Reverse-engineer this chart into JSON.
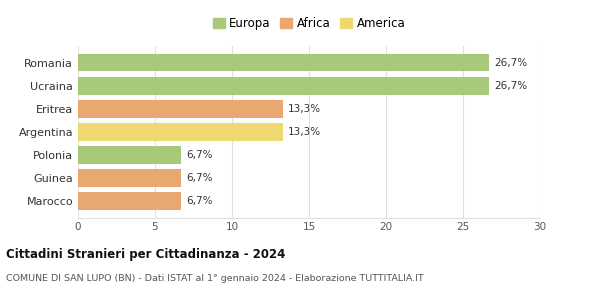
{
  "categories": [
    "Romania",
    "Ucraina",
    "Eritrea",
    "Argentina",
    "Polonia",
    "Guinea",
    "Marocco"
  ],
  "values": [
    26.7,
    26.7,
    13.3,
    13.3,
    6.7,
    6.7,
    6.7
  ],
  "labels": [
    "26,7%",
    "26,7%",
    "13,3%",
    "13,3%",
    "6,7%",
    "6,7%",
    "6,7%"
  ],
  "colors": [
    "#a8c87a",
    "#a8c87a",
    "#e8a870",
    "#f0d870",
    "#a8c87a",
    "#e8a870",
    "#e8a870"
  ],
  "legend": [
    {
      "label": "Europa",
      "color": "#a8c87a"
    },
    {
      "label": "Africa",
      "color": "#e8a870"
    },
    {
      "label": "America",
      "color": "#f0d870"
    }
  ],
  "xlim": [
    0,
    30
  ],
  "xticks": [
    0,
    5,
    10,
    15,
    20,
    25,
    30
  ],
  "title": "Cittadini Stranieri per Cittadinanza - 2024",
  "subtitle": "COMUNE DI SAN LUPO (BN) - Dati ISTAT al 1° gennaio 2024 - Elaborazione TUTTITALIA.IT",
  "background_color": "#ffffff",
  "grid_color": "#e0e0e0"
}
